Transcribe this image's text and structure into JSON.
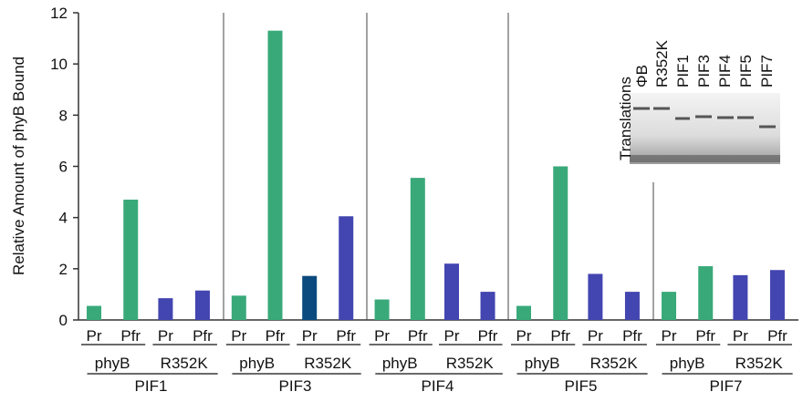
{
  "chart_data": {
    "type": "bar",
    "ylabel": "Relative Amount of phyB Bound",
    "ylim": [
      0,
      12
    ],
    "yticks": [
      0,
      2,
      4,
      6,
      8,
      10,
      12
    ],
    "groups": [
      {
        "name": "PIF1",
        "subgroups": [
          {
            "name": "phyB",
            "bars": [
              {
                "label": "Pr",
                "value": 0.55,
                "color": "#3aa97a"
              },
              {
                "label": "Pfr",
                "value": 4.7,
                "color": "#3aa97a"
              }
            ]
          },
          {
            "name": "R352K",
            "bars": [
              {
                "label": "Pr",
                "value": 0.85,
                "color": "#4345b0"
              },
              {
                "label": "Pfr",
                "value": 1.15,
                "color": "#4345b0"
              }
            ]
          }
        ]
      },
      {
        "name": "PIF3",
        "subgroups": [
          {
            "name": "phyB",
            "bars": [
              {
                "label": "Pr",
                "value": 0.95,
                "color": "#3aa97a"
              },
              {
                "label": "Pfr",
                "value": 11.3,
                "color": "#3aa97a"
              }
            ]
          },
          {
            "name": "R352K",
            "bars": [
              {
                "label": "Pr",
                "value": 1.72,
                "color": "#0b4a7e"
              },
              {
                "label": "Pfr",
                "value": 4.05,
                "color": "#4345b0"
              }
            ]
          }
        ]
      },
      {
        "name": "PIF4",
        "subgroups": [
          {
            "name": "phyB",
            "bars": [
              {
                "label": "Pr",
                "value": 0.8,
                "color": "#3aa97a"
              },
              {
                "label": "Pfr",
                "value": 5.55,
                "color": "#3aa97a"
              }
            ]
          },
          {
            "name": "R352K",
            "bars": [
              {
                "label": "Pr",
                "value": 2.2,
                "color": "#4345b0"
              },
              {
                "label": "Pfr",
                "value": 1.1,
                "color": "#4345b0"
              }
            ]
          }
        ]
      },
      {
        "name": "PIF5",
        "subgroups": [
          {
            "name": "phyB",
            "bars": [
              {
                "label": "Pr",
                "value": 0.55,
                "color": "#3aa97a"
              },
              {
                "label": "Pfr",
                "value": 6.0,
                "color": "#3aa97a"
              }
            ]
          },
          {
            "name": "R352K",
            "bars": [
              {
                "label": "Pr",
                "value": 1.8,
                "color": "#4345b0"
              },
              {
                "label": "Pfr",
                "value": 1.1,
                "color": "#4345b0"
              }
            ]
          }
        ]
      },
      {
        "name": "PIF7",
        "subgroups": [
          {
            "name": "phyB",
            "bars": [
              {
                "label": "Pr",
                "value": 1.1,
                "color": "#3aa97a"
              },
              {
                "label": "Pfr",
                "value": 2.1,
                "color": "#3aa97a"
              }
            ]
          },
          {
            "name": "R352K",
            "bars": [
              {
                "label": "Pr",
                "value": 1.75,
                "color": "#4345b0"
              },
              {
                "label": "Pfr",
                "value": 1.95,
                "color": "#4345b0"
              }
            ]
          }
        ]
      }
    ],
    "inset": {
      "title": "Translations",
      "lanes": [
        "ΦB",
        "R352K",
        "PIF1",
        "PIF3",
        "PIF4",
        "PIF5",
        "PIF7"
      ]
    }
  }
}
